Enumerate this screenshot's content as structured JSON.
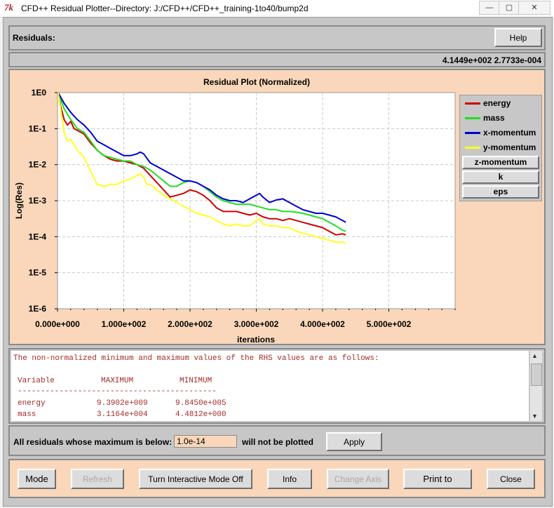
{
  "window": {
    "title": "CFD++ Residual Plotter--Directory: J:/CFD++/CFD++_training-1to40/bump2d",
    "minimize_glyph": "—",
    "maximize_glyph": "▢",
    "close_glyph": "✕"
  },
  "header": {
    "residuals_label": "Residuals:",
    "help_label": "Help",
    "coordinate_readout": "4.1449e+002 2.7733e-004"
  },
  "plot": {
    "title": "Residual Plot (Normalized)",
    "ylabel": "Log(Res)",
    "xlabel": "iterations",
    "legend": [
      {
        "label": "energy",
        "color": "#cc0000",
        "style": "swatch"
      },
      {
        "label": "mass",
        "color": "#22dd22",
        "style": "swatch"
      },
      {
        "label": "x-momentum",
        "color": "#0000cc",
        "style": "swatch"
      },
      {
        "label": "y-momentum",
        "color": "#ffff22",
        "style": "swatch"
      },
      {
        "label": "z-momentum",
        "style": "button"
      },
      {
        "label": "k",
        "style": "button"
      },
      {
        "label": "eps",
        "style": "button"
      }
    ]
  },
  "chart_data": {
    "type": "line",
    "title": "Residual Plot (Normalized)",
    "xlabel": "iterations",
    "ylabel": "Log(Res)",
    "x_scale": "linear",
    "y_scale": "log",
    "xlim": [
      0,
      600
    ],
    "ylim_exponent": [
      -6,
      0
    ],
    "x_ticks": [
      "0.000e+000",
      "1.000e+002",
      "2.000e+002",
      "3.000e+002",
      "4.000e+002",
      "5.000e+002"
    ],
    "y_ticks": [
      "1E0",
      "1E-1",
      "1E-2",
      "1E-3",
      "1E-4",
      "1E-5",
      "1E-6"
    ],
    "grid": true,
    "legend_position": "right",
    "series": [
      {
        "name": "energy",
        "color": "#cc0000",
        "x": [
          1,
          5,
          10,
          15,
          20,
          25,
          30,
          40,
          50,
          60,
          70,
          80,
          90,
          100,
          110,
          120,
          130,
          140,
          150,
          160,
          170,
          180,
          190,
          200,
          210,
          220,
          230,
          240,
          250,
          260,
          270,
          280,
          290,
          300,
          310,
          320,
          330,
          340,
          350,
          360,
          370,
          380,
          390,
          400,
          410,
          420,
          430,
          435
        ],
        "log10_y": [
          0,
          -0.4,
          -0.75,
          -0.9,
          -0.8,
          -1.0,
          -1.05,
          -1.15,
          -1.4,
          -1.6,
          -1.75,
          -1.85,
          -1.9,
          -1.9,
          -1.95,
          -2.0,
          -2.1,
          -2.3,
          -2.5,
          -2.7,
          -2.9,
          -2.85,
          -2.8,
          -2.7,
          -2.75,
          -2.85,
          -3.0,
          -3.2,
          -3.3,
          -3.3,
          -3.3,
          -3.35,
          -3.4,
          -3.35,
          -3.45,
          -3.5,
          -3.5,
          -3.55,
          -3.5,
          -3.55,
          -3.6,
          -3.65,
          -3.7,
          -3.75,
          -3.85,
          -3.95,
          -3.92,
          -3.95
        ]
      },
      {
        "name": "mass",
        "color": "#22dd22",
        "x": [
          1,
          10,
          20,
          30,
          40,
          50,
          60,
          70,
          80,
          90,
          100,
          110,
          120,
          130,
          140,
          150,
          160,
          170,
          180,
          190,
          200,
          210,
          220,
          230,
          240,
          250,
          260,
          270,
          280,
          290,
          300,
          310,
          320,
          330,
          340,
          350,
          360,
          370,
          380,
          390,
          400,
          410,
          420,
          430,
          435
        ],
        "log10_y": [
          0,
          -0.45,
          -0.75,
          -1.0,
          -1.1,
          -1.35,
          -1.6,
          -1.75,
          -1.8,
          -1.85,
          -1.9,
          -1.9,
          -2.0,
          -2.05,
          -2.15,
          -2.3,
          -2.45,
          -2.6,
          -2.6,
          -2.5,
          -2.45,
          -2.5,
          -2.6,
          -2.75,
          -2.9,
          -3.0,
          -3.05,
          -3.1,
          -3.1,
          -3.1,
          -3.15,
          -3.2,
          -3.25,
          -3.25,
          -3.3,
          -3.3,
          -3.32,
          -3.35,
          -3.4,
          -3.45,
          -3.5,
          -3.6,
          -3.7,
          -3.82,
          -3.85
        ]
      },
      {
        "name": "x-momentum",
        "color": "#0000cc",
        "x": [
          1,
          10,
          20,
          30,
          40,
          50,
          60,
          70,
          80,
          90,
          100,
          110,
          120,
          125,
          130,
          140,
          150,
          160,
          170,
          180,
          190,
          200,
          210,
          220,
          230,
          240,
          250,
          260,
          270,
          280,
          290,
          300,
          305,
          310,
          320,
          330,
          340,
          350,
          360,
          370,
          380,
          390,
          400,
          410,
          420,
          430,
          435
        ],
        "log10_y": [
          0,
          -0.3,
          -0.55,
          -0.75,
          -0.9,
          -1.1,
          -1.35,
          -1.45,
          -1.55,
          -1.65,
          -1.75,
          -1.75,
          -1.7,
          -1.65,
          -1.7,
          -1.95,
          -2.05,
          -2.15,
          -2.25,
          -2.35,
          -2.45,
          -2.45,
          -2.5,
          -2.6,
          -2.7,
          -2.85,
          -2.95,
          -3.0,
          -3.0,
          -3.05,
          -2.95,
          -2.85,
          -2.8,
          -2.9,
          -3.05,
          -2.98,
          -2.95,
          -3.05,
          -3.15,
          -3.25,
          -3.3,
          -3.35,
          -3.35,
          -3.4,
          -3.45,
          -3.55,
          -3.6
        ]
      },
      {
        "name": "y-momentum",
        "color": "#ffff22",
        "x": [
          1,
          10,
          15,
          20,
          30,
          40,
          50,
          60,
          70,
          80,
          90,
          100,
          110,
          120,
          125,
          130,
          135,
          140,
          150,
          160,
          170,
          180,
          190,
          200,
          210,
          220,
          230,
          240,
          250,
          260,
          270,
          280,
          290,
          300,
          305,
          310,
          320,
          330,
          340,
          350,
          360,
          370,
          380,
          390,
          400,
          410,
          420,
          430,
          435
        ],
        "log10_y": [
          0,
          -1.1,
          -1.35,
          -1.3,
          -1.6,
          -1.8,
          -2.2,
          -2.55,
          -2.6,
          -2.55,
          -2.55,
          -2.45,
          -2.4,
          -2.3,
          -2.25,
          -2.35,
          -2.55,
          -2.55,
          -2.7,
          -2.85,
          -2.95,
          -3.05,
          -3.15,
          -3.25,
          -3.35,
          -3.4,
          -3.45,
          -3.55,
          -3.65,
          -3.7,
          -3.65,
          -3.7,
          -3.7,
          -3.55,
          -3.5,
          -3.65,
          -3.7,
          -3.7,
          -3.75,
          -3.75,
          -3.85,
          -3.9,
          -3.95,
          -4.0,
          -4.05,
          -4.1,
          -4.15,
          -4.15,
          -4.2
        ]
      }
    ]
  },
  "info_text": {
    "intro": "The non-normalized minimum and maximum values of the RHS values are as follows:",
    "col_variable": "Variable",
    "col_maximum": "MAXIMUM",
    "col_minimum": "MINIMUM",
    "divider": "-------------------------------------------",
    "rows": [
      {
        "variable": "energy",
        "maximum": "9.3902e+009",
        "minimum": "9.8450e+005"
      },
      {
        "variable": "mass",
        "maximum": "3.1164e+004",
        "minimum": "4.4812e+000"
      }
    ]
  },
  "filter": {
    "label_before": "All residuals whose maximum is below:",
    "threshold_value": "1.0e-14",
    "label_after": "will not be plotted",
    "apply_label": "Apply"
  },
  "buttons": {
    "mode": "Mode",
    "refresh": "Refresh",
    "interactive": "Turn Interactive Mode Off",
    "info": "Info",
    "change_axis": "Change Axis",
    "print": "Print to",
    "close": "Close"
  },
  "colors": {
    "plot_bg": "#fad7ba",
    "frame_gray": "#c7c7c7",
    "text_red": "#a52a2a"
  }
}
